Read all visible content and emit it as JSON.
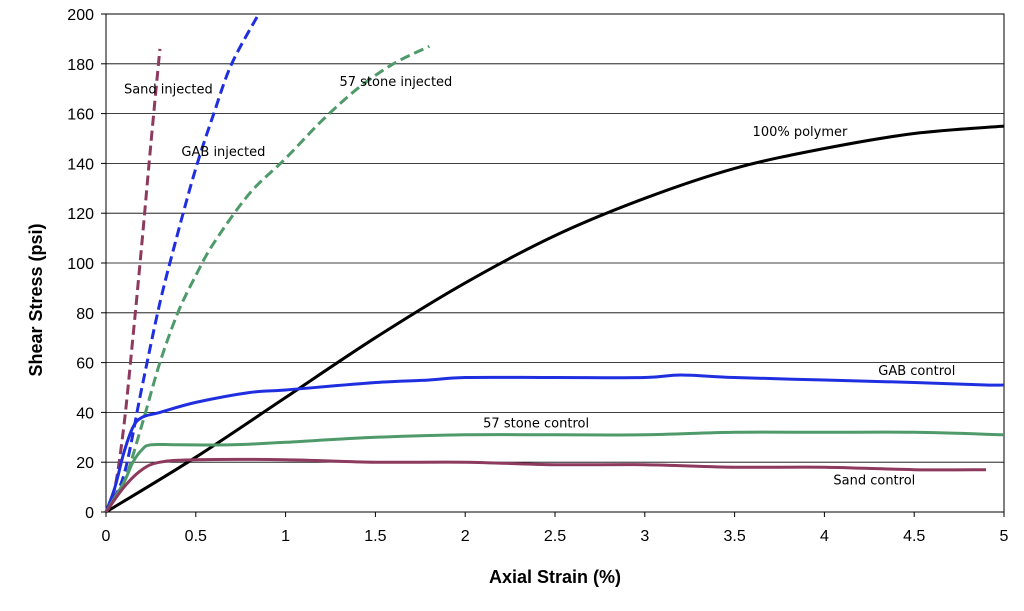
{
  "chart_data": {
    "type": "line",
    "xlabel": "Axial Strain (%)",
    "ylabel": "Shear Stress (psi)",
    "xlim": [
      0,
      5
    ],
    "ylim": [
      0,
      200
    ],
    "x_ticks": [
      "0",
      "0.5",
      "1",
      "1.5",
      "2",
      "2.5",
      "3",
      "3.5",
      "4",
      "4.5",
      "5"
    ],
    "y_ticks": [
      "0",
      "20",
      "40",
      "60",
      "80",
      "100",
      "120",
      "140",
      "160",
      "180",
      "200"
    ],
    "grid": "horizontal",
    "legend": "none (inline labels)",
    "series": [
      {
        "name": "Sand injected",
        "color": "#8e3a5e",
        "dash": true,
        "points": [
          [
            0,
            0
          ],
          [
            0.05,
            10
          ],
          [
            0.1,
            35
          ],
          [
            0.15,
            70
          ],
          [
            0.2,
            108
          ],
          [
            0.25,
            148
          ],
          [
            0.3,
            186
          ]
        ]
      },
      {
        "name": "GAB injected",
        "color": "#1f2fe0",
        "dash": true,
        "points": [
          [
            0,
            0
          ],
          [
            0.1,
            15
          ],
          [
            0.2,
            50
          ],
          [
            0.3,
            84
          ],
          [
            0.4,
            112
          ],
          [
            0.5,
            138
          ],
          [
            0.6,
            160
          ],
          [
            0.7,
            180
          ],
          [
            0.85,
            200
          ]
        ]
      },
      {
        "name": "57 stone injected",
        "color": "#4f9a6a",
        "dash": true,
        "points": [
          [
            0,
            0
          ],
          [
            0.1,
            12
          ],
          [
            0.2,
            35
          ],
          [
            0.3,
            60
          ],
          [
            0.4,
            80
          ],
          [
            0.5,
            95
          ],
          [
            0.6,
            108
          ],
          [
            0.8,
            128
          ],
          [
            1.0,
            142
          ],
          [
            1.2,
            157
          ],
          [
            1.4,
            170
          ],
          [
            1.6,
            180
          ],
          [
            1.8,
            187
          ]
        ]
      },
      {
        "name": "100% polymer",
        "color": "#000000",
        "dash": false,
        "points": [
          [
            0,
            0
          ],
          [
            0.5,
            22
          ],
          [
            1,
            46
          ],
          [
            1.5,
            70
          ],
          [
            2,
            92
          ],
          [
            2.5,
            111
          ],
          [
            3,
            126
          ],
          [
            3.5,
            138
          ],
          [
            4,
            146
          ],
          [
            4.5,
            152
          ],
          [
            5,
            155
          ]
        ]
      },
      {
        "name": "GAB control",
        "color": "#1f2fe0",
        "dash": false,
        "points": [
          [
            0,
            0
          ],
          [
            0.05,
            10
          ],
          [
            0.1,
            24
          ],
          [
            0.15,
            34
          ],
          [
            0.2,
            38
          ],
          [
            0.3,
            40
          ],
          [
            0.5,
            44
          ],
          [
            0.8,
            48
          ],
          [
            1,
            49
          ],
          [
            1.5,
            52
          ],
          [
            1.8,
            53
          ],
          [
            2,
            54
          ],
          [
            2.5,
            54
          ],
          [
            3,
            54
          ],
          [
            3.2,
            55
          ],
          [
            3.5,
            54
          ],
          [
            4,
            53
          ],
          [
            4.5,
            52
          ],
          [
            4.9,
            51
          ],
          [
            5,
            51
          ]
        ]
      },
      {
        "name": "57 stone control",
        "color": "#4f9a6a",
        "dash": false,
        "points": [
          [
            0,
            0
          ],
          [
            0.1,
            12
          ],
          [
            0.15,
            20
          ],
          [
            0.2,
            25
          ],
          [
            0.25,
            27
          ],
          [
            0.4,
            27
          ],
          [
            0.7,
            27
          ],
          [
            1,
            28
          ],
          [
            1.5,
            30
          ],
          [
            2,
            31
          ],
          [
            2.5,
            31
          ],
          [
            3,
            31
          ],
          [
            3.5,
            32
          ],
          [
            4,
            32
          ],
          [
            4.5,
            32
          ],
          [
            5,
            31
          ]
        ]
      },
      {
        "name": "Sand control",
        "color": "#8e3a5e",
        "dash": false,
        "points": [
          [
            0,
            0
          ],
          [
            0.1,
            10
          ],
          [
            0.2,
            17
          ],
          [
            0.3,
            20
          ],
          [
            0.5,
            21
          ],
          [
            1,
            21
          ],
          [
            1.5,
            20
          ],
          [
            2,
            20
          ],
          [
            2.5,
            19
          ],
          [
            3,
            19
          ],
          [
            3.5,
            18
          ],
          [
            4,
            18
          ],
          [
            4.5,
            17
          ],
          [
            4.9,
            17
          ]
        ]
      }
    ],
    "annotations": [
      {
        "text": "Sand injected",
        "x": 0.1,
        "y": 168
      },
      {
        "text": "GAB injected",
        "x": 0.42,
        "y": 143
      },
      {
        "text": "57 stone injected",
        "x": 1.3,
        "y": 171
      },
      {
        "text": "100% polymer",
        "x": 3.6,
        "y": 151
      },
      {
        "text": "GAB control",
        "x": 4.3,
        "y": 55
      },
      {
        "text": "57 stone control",
        "x": 2.1,
        "y": 34
      },
      {
        "text": "Sand control",
        "x": 4.05,
        "y": 11
      }
    ]
  }
}
